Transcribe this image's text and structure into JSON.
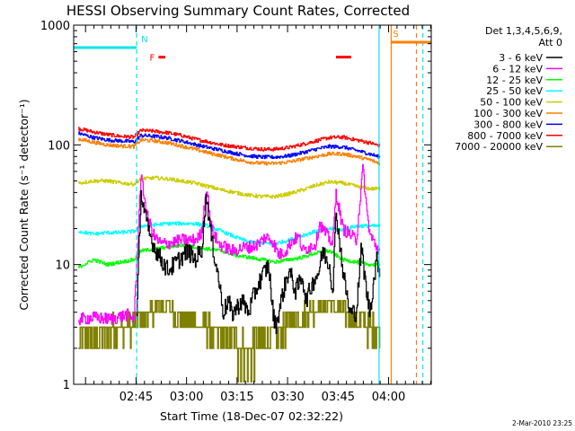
{
  "chart_data": {
    "type": "line",
    "title": "HESSI Observing Summary Count Rates, Corrected",
    "xlabel": "Start Time (18-Dec-07 02:32:22)",
    "ylabel": "Corrected Count Rate (s⁻¹ detector⁻¹)",
    "yscale": "log",
    "ylim": [
      1,
      1000
    ],
    "xlim_minutes_after_start": [
      -5.9,
      100.3
    ],
    "y_ticks": [
      "1",
      "10",
      "100",
      "1000"
    ],
    "x_ticks": [
      {
        "label": "02:45",
        "min": 12.63
      },
      {
        "label": "03:00",
        "min": 27.63
      },
      {
        "label": "03:15",
        "min": 42.63
      },
      {
        "label": "03:30",
        "min": 57.63
      },
      {
        "label": "03:45",
        "min": 72.63
      },
      {
        "label": "04:00",
        "min": 87.63
      }
    ],
    "grid": false,
    "legend_title": "Det 1,3,4,5,6,9,",
    "legend_subtitle": "Att 0",
    "legend_position": "right",
    "date_stamp": "2-Mar-2010 23:25",
    "flags": [
      {
        "label": "N",
        "color": "#00e5ee",
        "start_min": -5.9,
        "end_min": 12.8,
        "level": 650
      },
      {
        "label": "S",
        "color": "#ff7f00",
        "start_min": 88.4,
        "end_min": 100.3,
        "level": 720
      }
    ],
    "flare_marks": {
      "label": "F",
      "color": "#ff0000",
      "level": 540,
      "segments": [
        [
          19.3,
          21.3
        ],
        [
          72.0,
          76.5
        ]
      ]
    },
    "markers": [
      {
        "min": 12.8,
        "color": "#00e5ee",
        "style": "dashed"
      },
      {
        "min": 84.8,
        "color": "#00e5ee",
        "style": "solid"
      },
      {
        "min": 88.4,
        "color": "#ff7f00",
        "style": "solid"
      },
      {
        "min": 95.9,
        "color": "#ff7f00",
        "style": "dashed"
      },
      {
        "min": 97.8,
        "color": "#00e5ee",
        "style": "dashed"
      }
    ],
    "series": [
      {
        "name": "3 - 6 keV",
        "color": "#000000",
        "points": [
          [
            12.8,
            3.4
          ],
          [
            14,
            40
          ],
          [
            16,
            20
          ],
          [
            18,
            14
          ],
          [
            20,
            11
          ],
          [
            22,
            9
          ],
          [
            24,
            10
          ],
          [
            26,
            11.5
          ],
          [
            28,
            13
          ],
          [
            30,
            11
          ],
          [
            32,
            13
          ],
          [
            33.5,
            38
          ],
          [
            35,
            16
          ],
          [
            37,
            8
          ],
          [
            38.5,
            4
          ],
          [
            40,
            5
          ],
          [
            41,
            3.8
          ],
          [
            42,
            4.2
          ],
          [
            44,
            5
          ],
          [
            46,
            4
          ],
          [
            48,
            6
          ],
          [
            50,
            8
          ],
          [
            52,
            10
          ],
          [
            53,
            4.5
          ],
          [
            54,
            3
          ],
          [
            55,
            4
          ],
          [
            56,
            5.5
          ],
          [
            58,
            9
          ],
          [
            60,
            6
          ],
          [
            62,
            8
          ],
          [
            63,
            5
          ],
          [
            65,
            7
          ],
          [
            67,
            9
          ],
          [
            68,
            13
          ],
          [
            70,
            10
          ],
          [
            71,
            6
          ],
          [
            72,
            28
          ],
          [
            74,
            9
          ],
          [
            76,
            4
          ],
          [
            78,
            4
          ],
          [
            79.5,
            14
          ],
          [
            81,
            6
          ],
          [
            82,
            4
          ],
          [
            84,
            11
          ],
          [
            85,
            9
          ]
        ]
      },
      {
        "name": "6 - 12 keV",
        "color": "#ff00ff",
        "points": [
          [
            -4.5,
            3.5
          ],
          [
            0,
            3.6
          ],
          [
            5,
            3.5
          ],
          [
            10,
            3.8
          ],
          [
            12,
            3.5
          ],
          [
            14,
            55
          ],
          [
            16,
            25
          ],
          [
            18,
            17
          ],
          [
            20,
            15
          ],
          [
            22,
            15
          ],
          [
            24,
            15.5
          ],
          [
            26,
            16
          ],
          [
            28,
            16
          ],
          [
            30,
            16
          ],
          [
            32,
            18
          ],
          [
            33.5,
            45
          ],
          [
            35,
            20
          ],
          [
            37,
            15
          ],
          [
            39,
            14
          ],
          [
            41,
            13
          ],
          [
            43,
            13.5
          ],
          [
            45,
            14
          ],
          [
            47,
            14
          ],
          [
            49,
            15
          ],
          [
            51,
            17
          ],
          [
            53,
            16
          ],
          [
            55,
            12
          ],
          [
            57,
            13
          ],
          [
            59,
            16
          ],
          [
            61,
            17
          ],
          [
            62,
            13
          ],
          [
            64,
            14
          ],
          [
            66,
            15
          ],
          [
            67,
            22
          ],
          [
            69,
            18
          ],
          [
            71,
            15
          ],
          [
            72,
            40
          ],
          [
            74,
            20
          ],
          [
            76,
            18
          ],
          [
            78,
            16
          ],
          [
            80,
            65
          ],
          [
            81,
            30
          ],
          [
            82,
            18
          ],
          [
            84,
            14
          ],
          [
            85,
            13
          ]
        ]
      },
      {
        "name": "12 - 25 keV",
        "color": "#00ff00",
        "points": [
          [
            -4.5,
            9.5
          ],
          [
            0,
            11
          ],
          [
            4,
            10
          ],
          [
            8,
            10.5
          ],
          [
            12,
            11
          ],
          [
            14,
            13
          ],
          [
            18,
            13.5
          ],
          [
            22,
            14
          ],
          [
            26,
            14.5
          ],
          [
            30,
            14
          ],
          [
            34,
            13.5
          ],
          [
            38,
            13
          ],
          [
            42,
            12
          ],
          [
            46,
            11.5
          ],
          [
            50,
            11
          ],
          [
            54,
            10.5
          ],
          [
            58,
            11
          ],
          [
            62,
            11.5
          ],
          [
            66,
            12.5
          ],
          [
            70,
            13
          ],
          [
            74,
            11
          ],
          [
            78,
            10.5
          ],
          [
            82,
            10
          ],
          [
            85,
            10
          ]
        ]
      },
      {
        "name": "25 - 50 keV",
        "color": "#00ffff",
        "points": [
          [
            -4.5,
            19
          ],
          [
            0,
            18
          ],
          [
            4,
            18.5
          ],
          [
            8,
            18.5
          ],
          [
            12,
            19
          ],
          [
            14,
            21
          ],
          [
            18,
            21.5
          ],
          [
            22,
            22
          ],
          [
            26,
            22
          ],
          [
            30,
            22
          ],
          [
            34,
            21
          ],
          [
            38,
            19
          ],
          [
            42,
            17
          ],
          [
            46,
            15.5
          ],
          [
            50,
            15
          ],
          [
            54,
            15
          ],
          [
            58,
            16
          ],
          [
            62,
            17.5
          ],
          [
            66,
            19
          ],
          [
            70,
            20
          ],
          [
            74,
            19.5
          ],
          [
            78,
            21
          ],
          [
            82,
            21
          ],
          [
            85,
            21
          ]
        ]
      },
      {
        "name": "50 - 100 keV",
        "color": "#cccc00",
        "points": [
          [
            -4.5,
            48
          ],
          [
            0,
            50
          ],
          [
            4,
            50
          ],
          [
            8,
            48
          ],
          [
            12,
            47
          ],
          [
            14,
            52
          ],
          [
            18,
            53
          ],
          [
            22,
            52
          ],
          [
            26,
            50
          ],
          [
            30,
            48
          ],
          [
            34,
            45
          ],
          [
            38,
            42
          ],
          [
            42,
            40
          ],
          [
            46,
            38
          ],
          [
            50,
            37
          ],
          [
            54,
            37
          ],
          [
            58,
            39
          ],
          [
            62,
            42
          ],
          [
            66,
            46
          ],
          [
            70,
            49
          ],
          [
            74,
            48
          ],
          [
            78,
            45
          ],
          [
            82,
            43
          ],
          [
            85,
            43
          ]
        ]
      },
      {
        "name": "100 - 300 keV",
        "color": "#ff7f00",
        "points": [
          [
            -4.5,
            112
          ],
          [
            0,
            105
          ],
          [
            4,
            100
          ],
          [
            8,
            98
          ],
          [
            12,
            97
          ],
          [
            14,
            110
          ],
          [
            18,
            108
          ],
          [
            22,
            104
          ],
          [
            26,
            98
          ],
          [
            30,
            92
          ],
          [
            34,
            86
          ],
          [
            38,
            81
          ],
          [
            42,
            76
          ],
          [
            46,
            72
          ],
          [
            50,
            70
          ],
          [
            54,
            70
          ],
          [
            58,
            72
          ],
          [
            62,
            76
          ],
          [
            66,
            80
          ],
          [
            70,
            84
          ],
          [
            74,
            84
          ],
          [
            78,
            80
          ],
          [
            82,
            75
          ],
          [
            85,
            70
          ]
        ]
      },
      {
        "name": "300 - 800 keV",
        "color": "#0000ff",
        "points": [
          [
            -4.5,
            125
          ],
          [
            0,
            115
          ],
          [
            4,
            110
          ],
          [
            8,
            108
          ],
          [
            12,
            106
          ],
          [
            14,
            120
          ],
          [
            18,
            118
          ],
          [
            22,
            114
          ],
          [
            26,
            108
          ],
          [
            30,
            101
          ],
          [
            34,
            95
          ],
          [
            38,
            90
          ],
          [
            42,
            85
          ],
          [
            46,
            81
          ],
          [
            50,
            79
          ],
          [
            54,
            79
          ],
          [
            58,
            81
          ],
          [
            62,
            86
          ],
          [
            66,
            92
          ],
          [
            70,
            97
          ],
          [
            74,
            96
          ],
          [
            78,
            90
          ],
          [
            82,
            84
          ],
          [
            85,
            79
          ]
        ]
      },
      {
        "name": "800 - 7000 keV",
        "color": "#ff0000",
        "points": [
          [
            -4.5,
            137
          ],
          [
            0,
            128
          ],
          [
            4,
            122
          ],
          [
            8,
            118
          ],
          [
            12,
            116
          ],
          [
            14,
            132
          ],
          [
            18,
            130
          ],
          [
            22,
            126
          ],
          [
            26,
            120
          ],
          [
            30,
            112
          ],
          [
            34,
            106
          ],
          [
            38,
            100
          ],
          [
            42,
            97
          ],
          [
            46,
            94
          ],
          [
            50,
            92
          ],
          [
            54,
            92
          ],
          [
            58,
            95
          ],
          [
            62,
            101
          ],
          [
            66,
            108
          ],
          [
            70,
            115
          ],
          [
            74,
            116
          ],
          [
            78,
            110
          ],
          [
            82,
            104
          ],
          [
            85,
            98
          ]
        ]
      },
      {
        "name": "7000 - 20000 keV",
        "color": "#808000",
        "points": [
          [
            -4.5,
            2.2
          ],
          [
            0,
            2.6
          ],
          [
            4,
            2.8
          ],
          [
            8,
            3.0
          ],
          [
            12,
            3.2
          ],
          [
            14,
            3.6
          ],
          [
            18,
            4.2
          ],
          [
            22,
            4.5
          ],
          [
            26,
            3.8
          ],
          [
            30,
            3.3
          ],
          [
            34,
            2.9
          ],
          [
            38,
            2.5
          ],
          [
            42,
            2.2
          ],
          [
            46,
            2.0
          ],
          [
            50,
            2.2
          ],
          [
            54,
            2.6
          ],
          [
            58,
            3.2
          ],
          [
            62,
            3.8
          ],
          [
            66,
            4.3
          ],
          [
            70,
            4.6
          ],
          [
            74,
            4.2
          ],
          [
            78,
            3.6
          ],
          [
            82,
            3.1
          ],
          [
            85,
            2.9
          ]
        ]
      }
    ]
  }
}
